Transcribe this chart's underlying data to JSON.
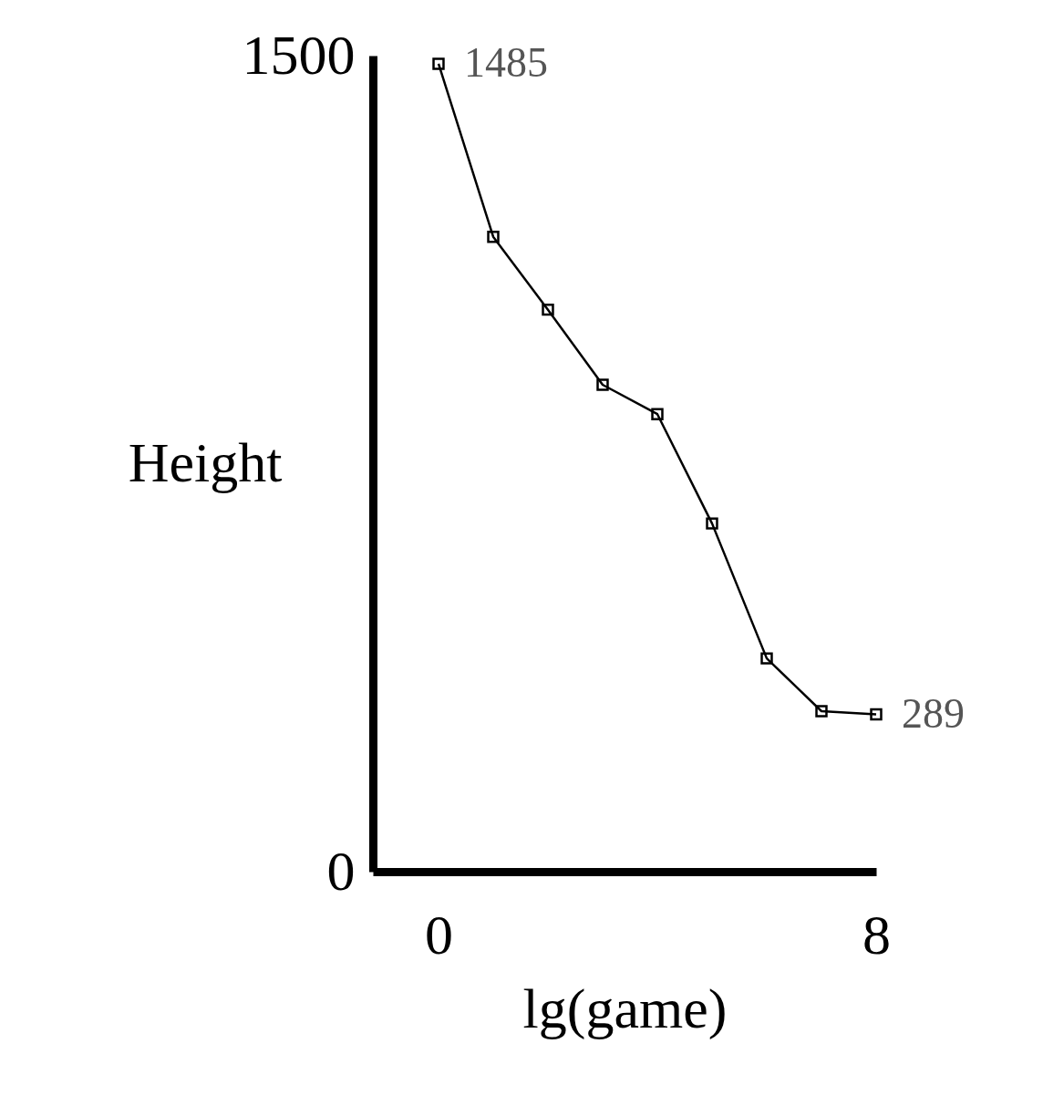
{
  "chart_data": {
    "type": "line",
    "xlabel": "lg(game)",
    "ylabel": "Height",
    "x": [
      0,
      1,
      2,
      3,
      4,
      5,
      6,
      7,
      8
    ],
    "series": [
      {
        "color": "#000000",
        "values": [
          1485,
          1167,
          1033,
          895,
          841,
          640,
          392,
          295,
          289
        ],
        "value_labels": [
          "1485",
          null,
          null,
          null,
          null,
          null,
          null,
          null,
          "289"
        ]
      }
    ],
    "xlim": [
      -1.2,
      8
    ],
    "ylim": [
      0,
      1500
    ],
    "xticks": [
      0,
      8
    ],
    "yticks": [
      0,
      1500
    ],
    "marker": "square",
    "line_style": "solid",
    "grid": false
  }
}
